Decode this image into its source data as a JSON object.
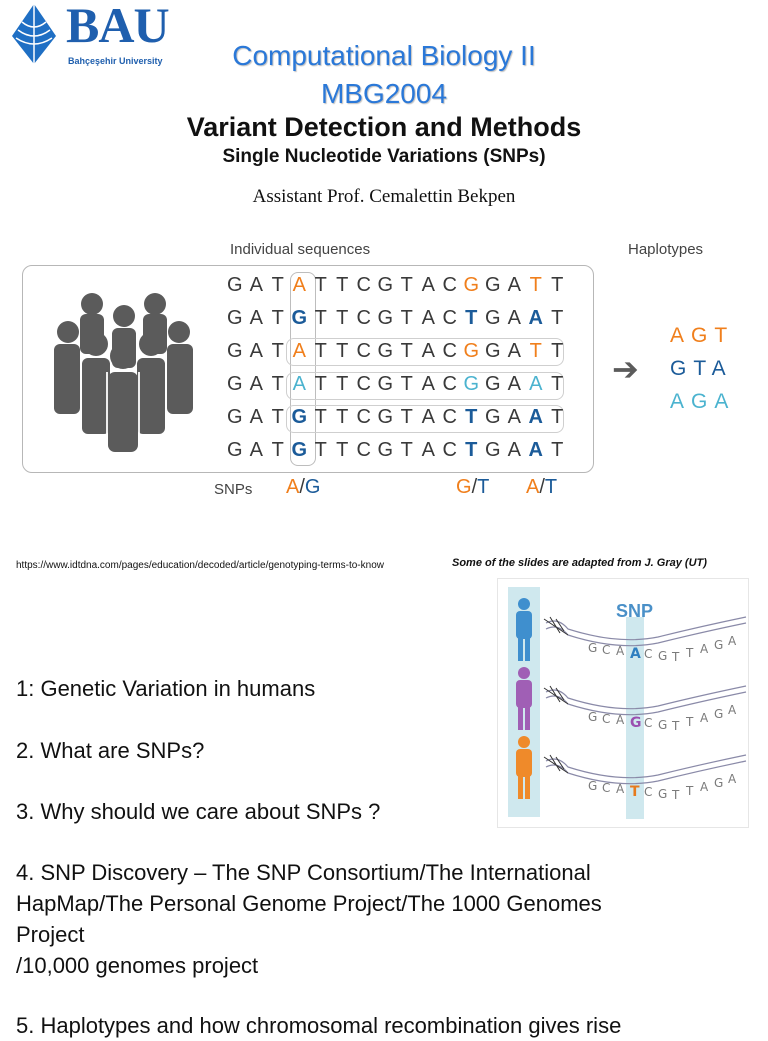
{
  "logo": {
    "brand": "BAU",
    "university": "Bahçeşehir University"
  },
  "header": {
    "course": "Computational Biology II",
    "code": "MBG2004",
    "title": "Variant Detection and Methods",
    "subtitle": "Single Nucleotide Variations (SNPs)",
    "author": "Assistant Prof. Cemalettin Bekpen"
  },
  "figure1": {
    "label_sequences": "Individual sequences",
    "label_haplotypes": "Haplotypes",
    "sequences": [
      "GATATTCGTACGGATT",
      "GATGTTCGTACTGAAT",
      "GATATTCGTACGGATT",
      "GATATTCGTACGGAAT",
      "GATGTTCGTACTGAAT",
      "GATGTTCGTACTGAAT"
    ],
    "haplotypes": [
      "AGT",
      "GTA",
      "AGA"
    ],
    "snps_label": "SNPs",
    "snp1_a": "A",
    "snp1_b": "G",
    "snp2_a": "G",
    "snp2_b": "T",
    "snp3_a": "A",
    "snp3_b": "T",
    "slash": "/",
    "arrow": "➔",
    "colors": {
      "orange": "#f07f1c",
      "blue": "#1b5b99",
      "teal": "#4bb3cf",
      "gray": "#3a3a3a"
    }
  },
  "source_url": "https://www.idtdna.com/pages/education/decoded/article/genotyping-terms-to-know",
  "acknowledgement": "Some of the slides are adapted from J. Gray (UT)",
  "figure2": {
    "label": "SNP",
    "rows": [
      {
        "seq": [
          "G",
          "C",
          "A",
          "A",
          "C",
          "G",
          "T",
          "T",
          "A",
          "G",
          "A"
        ],
        "snp": "A"
      },
      {
        "seq": [
          "G",
          "C",
          "A",
          "G",
          "C",
          "G",
          "T",
          "T",
          "A",
          "G",
          "A"
        ],
        "snp": "G"
      },
      {
        "seq": [
          "G",
          "C",
          "A",
          "T",
          "C",
          "G",
          "T",
          "T",
          "A",
          "G",
          "A"
        ],
        "snp": "T"
      }
    ]
  },
  "outline": {
    "item1": "1: Genetic Variation in humans",
    "item2": "2. What are SNPs?",
    "item3": "3. Why should we care about SNPs ?",
    "item4_line1": "4. SNP Discovery – The SNP Consortium/The International",
    "item4_line2": "HapMap/The Personal Genome Project/The 1000 Genomes",
    "item4_line3": "Project",
    "item4_line4": "/10,000 genomes project",
    "item5": "5. Haplotypes and how chromosomal recombination gives rise"
  }
}
